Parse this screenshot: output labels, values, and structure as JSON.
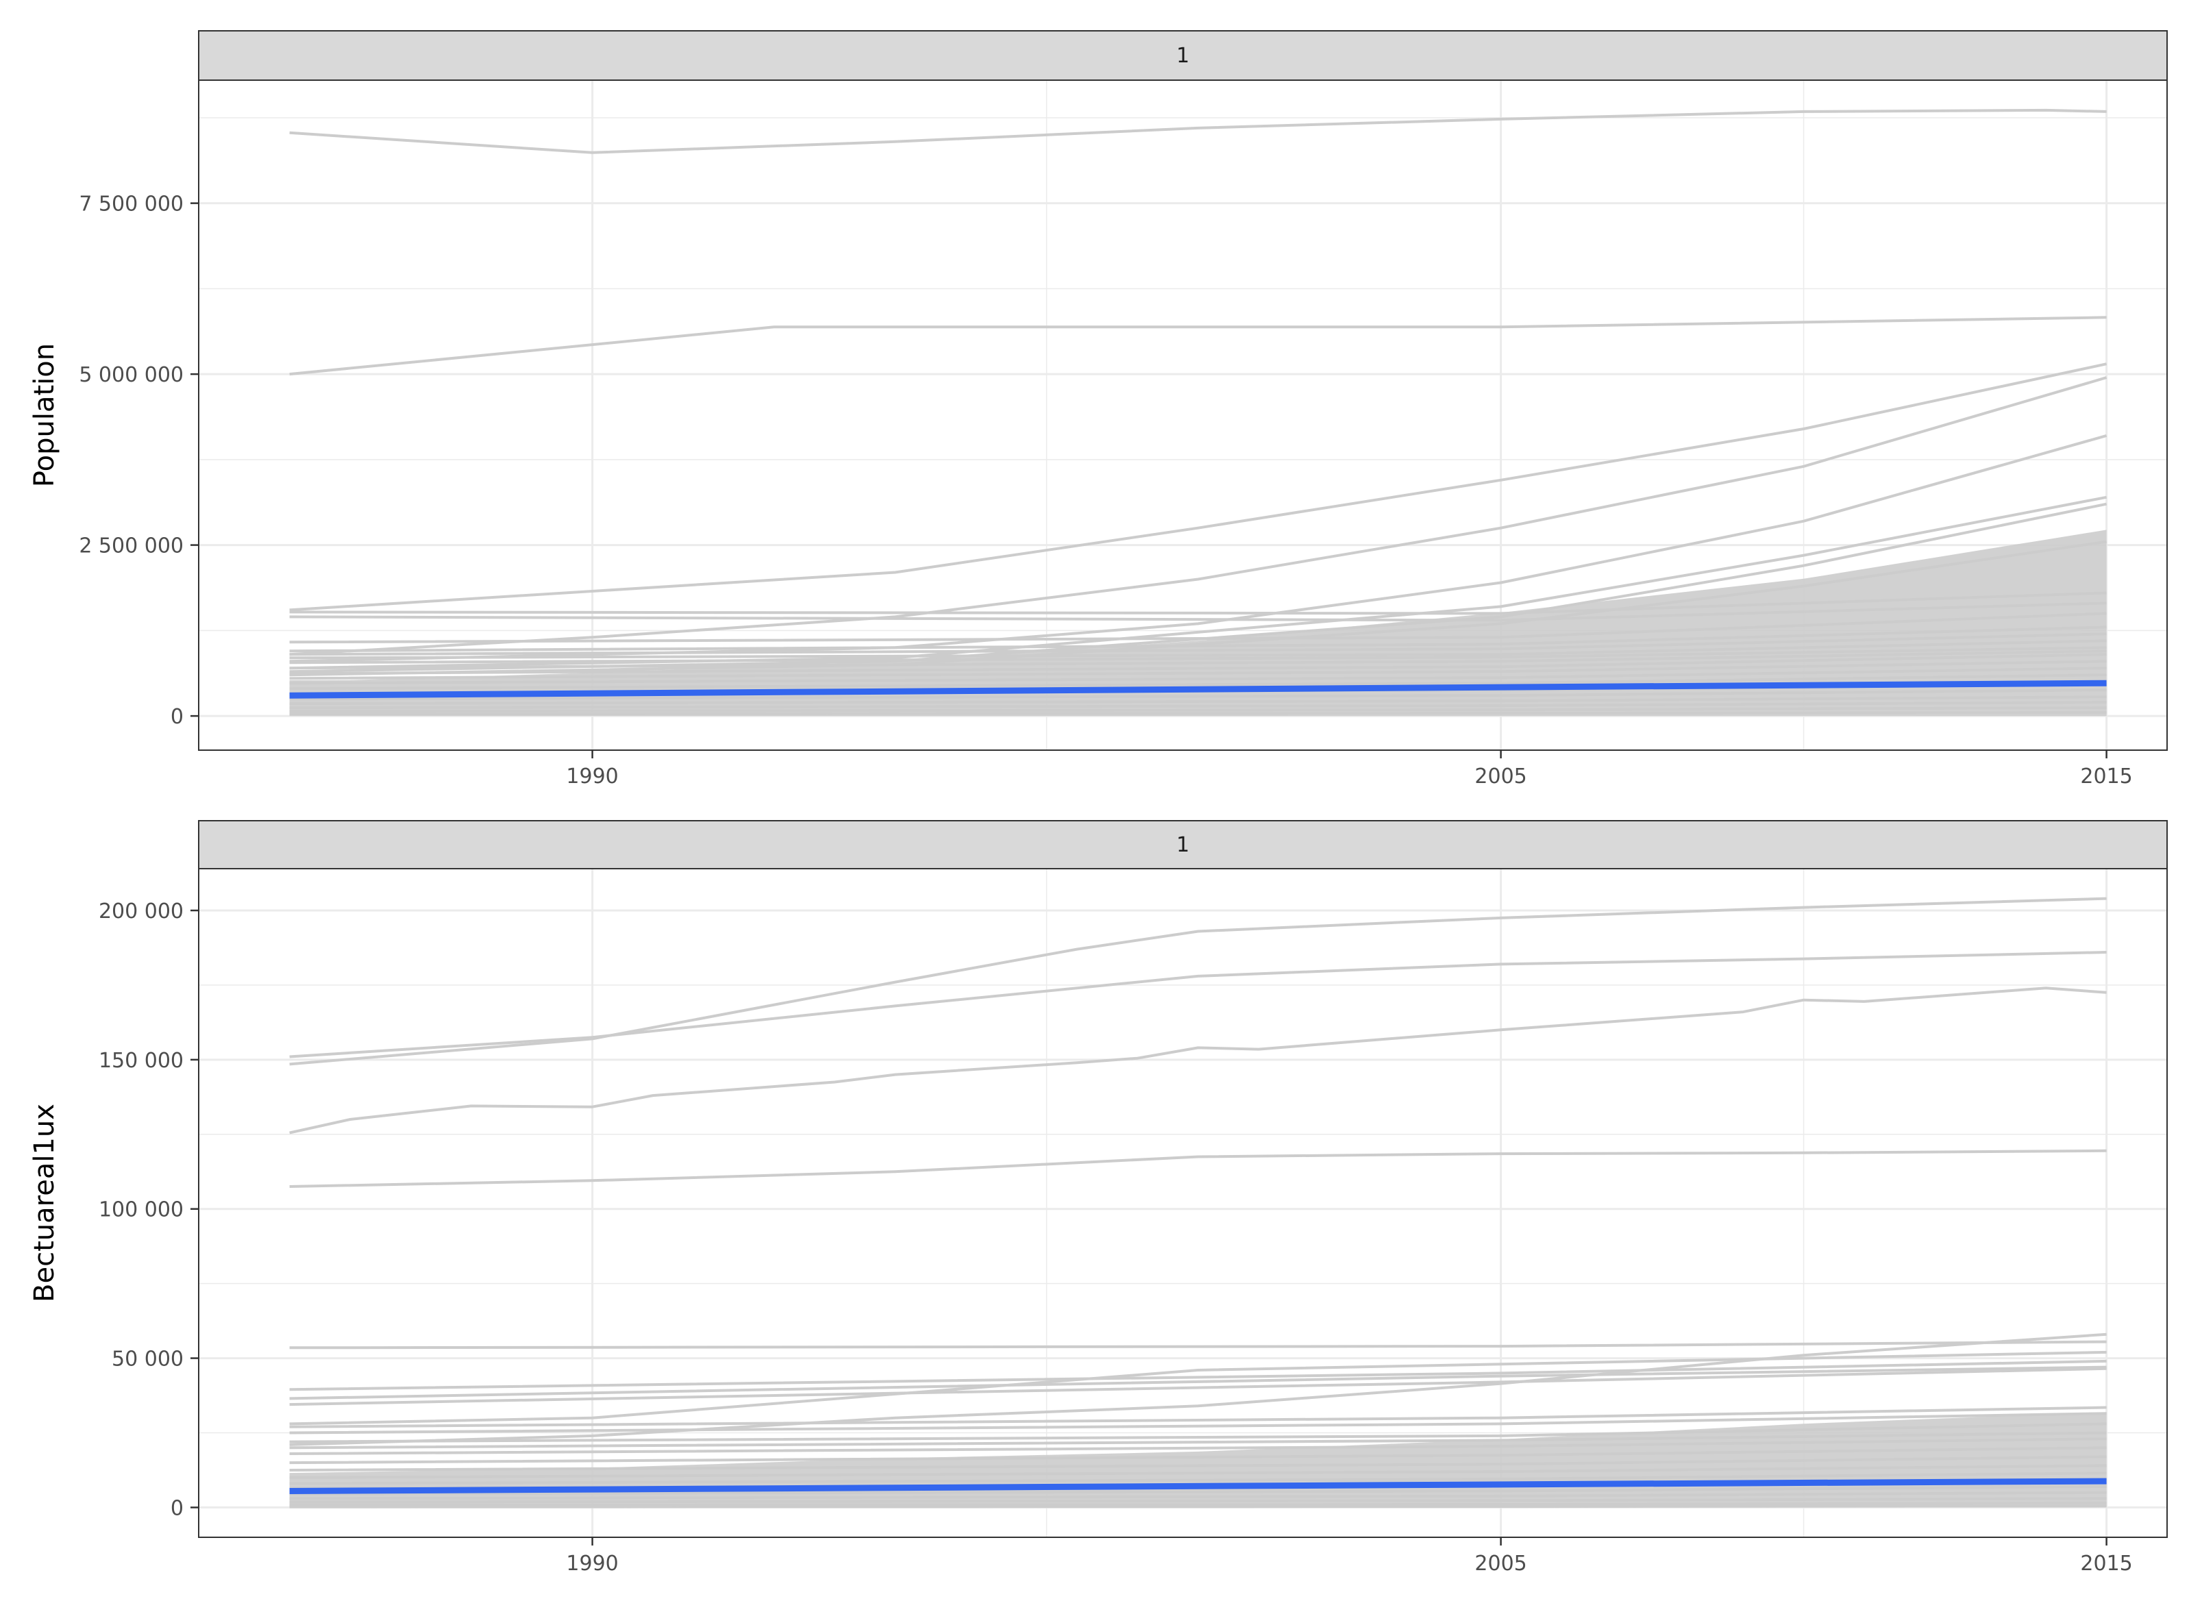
{
  "colors": {
    "background_line": "#cccccc",
    "highlight_line": "#3366ee",
    "strip_fill": "#d9d9d9",
    "strip_border": "#333333",
    "panel_border": "#333333",
    "grid": "#ebebeb",
    "tick_text": "#4d4d4d"
  },
  "chart_data": [
    {
      "type": "line",
      "facet_label": "1",
      "ylabel": "Population",
      "xlabel": "",
      "xlim": [
        1983.5,
        2016
      ],
      "ylim": [
        -500000,
        9300000
      ],
      "x_ticks": [
        1990,
        2005,
        2015
      ],
      "x_tick_labels": [
        "1990",
        "2005",
        "2015"
      ],
      "y_ticks": [
        0,
        2500000,
        5000000,
        7500000
      ],
      "y_tick_labels": [
        "0",
        "2 500 000",
        "5 000 000",
        "7 500 000"
      ],
      "highlight_series": {
        "name": "highlight",
        "x": [
          1985,
          2015
        ],
        "values": [
          300000,
          480000
        ]
      },
      "background_series": [
        {
          "x": [
            1985,
            1990,
            1995,
            2000,
            2005,
            2010,
            2014,
            2015
          ],
          "values": [
            8530000,
            8240000,
            8400000,
            8600000,
            8730000,
            8840000,
            8860000,
            8840000
          ]
        },
        {
          "x": [
            1985,
            1993,
            2005,
            2015
          ],
          "values": [
            5000000,
            5690000,
            5690000,
            5830000
          ]
        },
        {
          "x": [
            1985,
            1995,
            2000,
            2005,
            2010,
            2015
          ],
          "values": [
            1550000,
            2100000,
            2750000,
            3450000,
            4200000,
            5150000
          ]
        },
        {
          "x": [
            1985,
            1990,
            1995,
            2000,
            2005,
            2010,
            2015
          ],
          "values": [
            900000,
            1150000,
            1450000,
            2000000,
            2750000,
            3650000,
            4950000
          ]
        },
        {
          "x": [
            1985,
            1995,
            2000,
            2005,
            2010,
            2015
          ],
          "values": [
            800000,
            1000000,
            1350000,
            1950000,
            2850000,
            4100000
          ]
        },
        {
          "x": [
            1985,
            1995,
            2005,
            2010,
            2015
          ],
          "values": [
            700000,
            850000,
            1600000,
            2350000,
            3200000
          ]
        },
        {
          "x": [
            1985,
            1995,
            2005,
            2010,
            2015
          ],
          "values": [
            650000,
            800000,
            1450000,
            2200000,
            3100000
          ]
        },
        {
          "x": [
            1985,
            1995,
            2005,
            2010,
            2015
          ],
          "values": [
            600000,
            750000,
            1350000,
            1900000,
            2550000
          ]
        },
        {
          "x": [
            1985,
            2005,
            2015
          ],
          "values": [
            1520000,
            1500000,
            1800000
          ]
        },
        {
          "x": [
            1985,
            2005,
            2015
          ],
          "values": [
            1450000,
            1400000,
            1650000
          ]
        },
        {
          "x": [
            1985,
            2005,
            2015
          ],
          "values": [
            1080000,
            1150000,
            1500000
          ]
        },
        {
          "x": [
            1985,
            2005,
            2015
          ],
          "values": [
            950000,
            1050000,
            1300000
          ]
        },
        {
          "x": [
            1985,
            2005,
            2015
          ],
          "values": [
            900000,
            980000,
            1200000
          ]
        },
        {
          "x": [
            1985,
            2005,
            2015
          ],
          "values": [
            850000,
            900000,
            1100000
          ]
        },
        {
          "x": [
            1985,
            2005,
            2015
          ],
          "values": [
            780000,
            860000,
            1000000
          ]
        },
        {
          "x": [
            1985,
            2005,
            2015
          ],
          "values": [
            700000,
            800000,
            950000
          ]
        },
        {
          "x": [
            1985,
            2005,
            2015
          ],
          "values": [
            620000,
            720000,
            900000
          ]
        },
        {
          "x": [
            1985,
            2005,
            2015
          ],
          "values": [
            550000,
            650000,
            800000
          ]
        },
        {
          "x": [
            1985,
            2005,
            2015
          ],
          "values": [
            480000,
            560000,
            700000
          ]
        },
        {
          "x": [
            1985,
            2005,
            2015
          ],
          "values": [
            400000,
            480000,
            600000
          ]
        },
        {
          "x": [
            1985,
            2005,
            2015
          ],
          "values": [
            320000,
            380000,
            470000
          ]
        },
        {
          "x": [
            1985,
            2005,
            2015
          ],
          "values": [
            250000,
            300000,
            380000
          ]
        },
        {
          "x": [
            1985,
            2005,
            2015
          ],
          "values": [
            180000,
            220000,
            280000
          ]
        },
        {
          "x": [
            1985,
            2005,
            2015
          ],
          "values": [
            120000,
            150000,
            200000
          ]
        },
        {
          "x": [
            1985,
            2005,
            2015
          ],
          "values": [
            70000,
            90000,
            120000
          ]
        },
        {
          "x": [
            1985,
            2005,
            2015
          ],
          "values": [
            30000,
            40000,
            50000
          ]
        }
      ]
    },
    {
      "type": "line",
      "facet_label": "1",
      "ylabel": "Bectuareal1ux",
      "xlabel": "",
      "xlim": [
        1983.5,
        2016
      ],
      "ylim": [
        -10000,
        214000
      ],
      "x_ticks": [
        1990,
        2005,
        2015
      ],
      "x_tick_labels": [
        "1990",
        "2005",
        "2015"
      ],
      "y_ticks": [
        0,
        50000,
        100000,
        150000,
        200000
      ],
      "y_tick_labels": [
        "0",
        "50 000",
        "100 000",
        "150 000",
        "200 000"
      ],
      "highlight_series": {
        "name": "highlight",
        "x": [
          1985,
          2015
        ],
        "values": [
          5500,
          8800
        ]
      },
      "background_series": [
        {
          "x": [
            1985,
            1990,
            1995,
            1998,
            2000,
            2005,
            2010,
            2015
          ],
          "values": [
            148500,
            157000,
            176000,
            187000,
            193000,
            197500,
            201000,
            204000
          ]
        },
        {
          "x": [
            1985,
            1990,
            1995,
            2000,
            2005,
            2010,
            2015
          ],
          "values": [
            151000,
            157500,
            168000,
            178000,
            182000,
            183800,
            186000
          ]
        },
        {
          "x": [
            1985,
            1986,
            1988,
            1990,
            1991,
            1994,
            1995,
            1998,
            1999,
            2000,
            2001,
            2005,
            2006,
            2009,
            2010,
            2011,
            2014,
            2015
          ],
          "values": [
            125500,
            130000,
            134500,
            134200,
            138000,
            142500,
            145000,
            149000,
            150500,
            154000,
            153500,
            160000,
            161500,
            166000,
            170000,
            169500,
            174000,
            172500
          ]
        },
        {
          "x": [
            1985,
            1990,
            1995,
            2000,
            2005,
            2010,
            2015
          ],
          "values": [
            107500,
            109500,
            112500,
            117500,
            118500,
            118800,
            119500
          ]
        },
        {
          "x": [
            1985,
            2005,
            2015
          ],
          "values": [
            53500,
            54000,
            55500
          ]
        },
        {
          "x": [
            1985,
            1990,
            1995,
            2000,
            2005,
            2010,
            2015
          ],
          "values": [
            28000,
            30000,
            38000,
            46000,
            48000,
            50000,
            52000
          ]
        },
        {
          "x": [
            1985,
            1990,
            1995,
            2000,
            2005,
            2010,
            2015
          ],
          "values": [
            21000,
            24000,
            30000,
            34000,
            41500,
            51000,
            58000
          ]
        },
        {
          "x": [
            1985,
            2005,
            2015
          ],
          "values": [
            39500,
            45000,
            49000
          ]
        },
        {
          "x": [
            1985,
            2005,
            2015
          ],
          "values": [
            36500,
            44000,
            47000
          ]
        },
        {
          "x": [
            1985,
            2005,
            2015
          ],
          "values": [
            34500,
            42000,
            46500
          ]
        },
        {
          "x": [
            1985,
            2005,
            2015
          ],
          "values": [
            27000,
            30000,
            33500
          ]
        },
        {
          "x": [
            1985,
            2005,
            2015
          ],
          "values": [
            25000,
            28000,
            31500
          ]
        },
        {
          "x": [
            1985,
            2005,
            2015
          ],
          "values": [
            22000,
            24000,
            28000
          ]
        },
        {
          "x": [
            1985,
            2005,
            2015
          ],
          "values": [
            20000,
            22500,
            25000
          ]
        },
        {
          "x": [
            1985,
            2005,
            2015
          ],
          "values": [
            18000,
            20500,
            23000
          ]
        },
        {
          "x": [
            1985,
            2005,
            2015
          ],
          "values": [
            15000,
            17500,
            20000
          ]
        },
        {
          "x": [
            1985,
            2005,
            2015
          ],
          "values": [
            12500,
            14500,
            17000
          ]
        },
        {
          "x": [
            1985,
            2005,
            2015
          ],
          "values": [
            10000,
            12000,
            14000
          ]
        },
        {
          "x": [
            1985,
            2005,
            2015
          ],
          "values": [
            8000,
            9500,
            11500
          ]
        },
        {
          "x": [
            1985,
            2005,
            2015
          ],
          "values": [
            6500,
            7500,
            9500
          ]
        },
        {
          "x": [
            1985,
            2005,
            2015
          ],
          "values": [
            4500,
            5500,
            7000
          ]
        },
        {
          "x": [
            1985,
            2005,
            2015
          ],
          "values": [
            3000,
            3800,
            5000
          ]
        },
        {
          "x": [
            1985,
            2005,
            2015
          ],
          "values": [
            1800,
            2300,
            3000
          ]
        },
        {
          "x": [
            1985,
            2005,
            2015
          ],
          "values": [
            800,
            1000,
            1500
          ]
        },
        {
          "x": [
            1985,
            2005,
            2015
          ],
          "values": [
            200,
            300,
            500
          ]
        }
      ]
    }
  ]
}
